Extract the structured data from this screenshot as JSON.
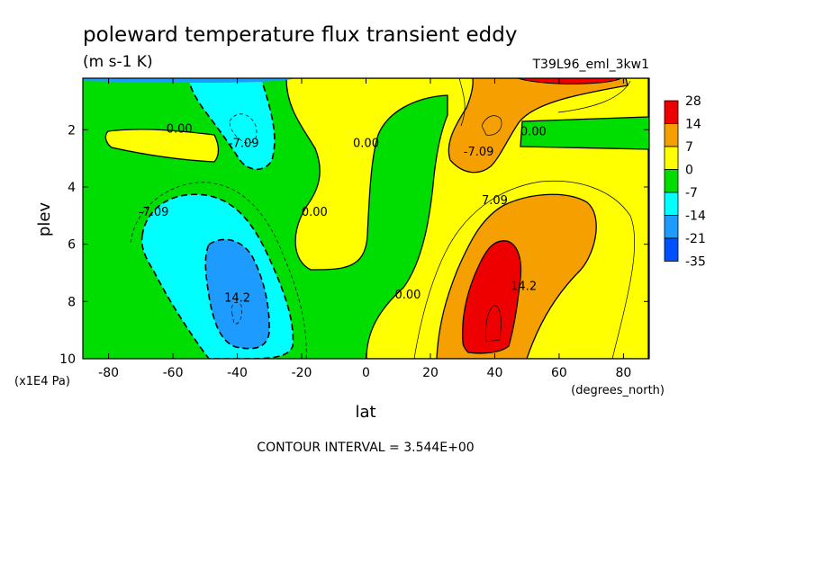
{
  "chart_data": {
    "type": "heatmap",
    "title": "poleward temperature flux transient eddy",
    "subtitle": "(m s-1 K)",
    "run_label": "T39L96_eml_3kw1",
    "xlabel": "lat",
    "x_units": "(degrees_north)",
    "ylabel": "plev",
    "y_units": "(x1E4 Pa)",
    "x_range": [
      -88,
      88
    ],
    "y_range": [
      0.2,
      10
    ],
    "y_inverted": true,
    "x_ticks": [
      -80,
      -60,
      -40,
      -20,
      0,
      20,
      40,
      60,
      80
    ],
    "y_ticks": [
      2,
      4,
      6,
      8,
      10
    ],
    "footer": "CONTOUR INTERVAL = 3.544E+00",
    "colorbar": {
      "levels": [
        "28",
        "14",
        "7",
        "0",
        "-7",
        "-14",
        "-21",
        "-35"
      ],
      "colors": [
        "#ee0000",
        "#f5a000",
        "#ffff00",
        "#00dd00",
        "#00ffff",
        "#1e9bff",
        "#0050ff"
      ]
    },
    "contour_labels": [
      {
        "text": "0.00",
        "x": -58,
        "y": 2.1
      },
      {
        "text": "-7.09",
        "x": -38,
        "y": 2.6
      },
      {
        "text": "-7.09",
        "x": -66,
        "y": 5.0
      },
      {
        "text": "0.00",
        "x": -16,
        "y": 5.0
      },
      {
        "text": "0.00",
        "x": 0,
        "y": 2.6
      },
      {
        "text": "14.2",
        "x": -40,
        "y": 8.0
      },
      {
        "text": "0.00",
        "x": 13,
        "y": 7.9
      },
      {
        "text": "-7.09",
        "x": 35,
        "y": 2.9
      },
      {
        "text": "0.00",
        "x": 52,
        "y": 2.2
      },
      {
        "text": "7.09",
        "x": 40,
        "y": 4.6
      },
      {
        "text": "14.2",
        "x": 49,
        "y": 7.6
      }
    ]
  }
}
